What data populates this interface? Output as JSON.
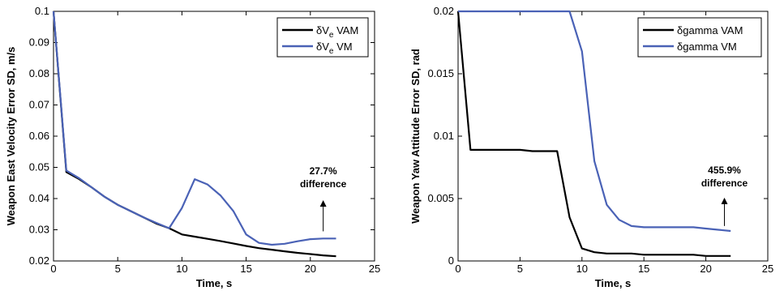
{
  "chart_data": [
    {
      "type": "line",
      "xlabel": "Time, s",
      "ylabel": "Weapon East Velocity Error SD, m/s",
      "xlim": [
        0,
        25
      ],
      "ylim": [
        0.02,
        0.1
      ],
      "xticks": [
        "0",
        "5",
        "10",
        "15",
        "20",
        "25"
      ],
      "yticks": [
        "0.02",
        "0.03",
        "0.04",
        "0.05",
        "0.06",
        "0.07",
        "0.08",
        "0.09",
        "0.1"
      ],
      "grid": false,
      "legend_position": "top-right",
      "series": [
        {
          "name": "δVe VAM",
          "legend_main": "δV",
          "legend_sub": "e",
          "legend_suffix": " VAM",
          "color": "#000000",
          "x": [
            0,
            1,
            2,
            3,
            4,
            5,
            6,
            7,
            8,
            9,
            10,
            11,
            12,
            13,
            14,
            15,
            16,
            17,
            18,
            19,
            20,
            21,
            22
          ],
          "y": [
            0.1,
            0.0485,
            0.0462,
            0.0435,
            0.0405,
            0.038,
            0.036,
            0.034,
            0.032,
            0.0305,
            0.0285,
            0.0278,
            0.0271,
            0.0264,
            0.0256,
            0.0248,
            0.0241,
            0.0236,
            0.0231,
            0.0226,
            0.0222,
            0.0218,
            0.0215
          ]
        },
        {
          "name": "δVe VM",
          "legend_main": "δV",
          "legend_sub": "e",
          "legend_suffix": " VM",
          "color": "#4a62b6",
          "x": [
            0,
            1,
            2,
            3,
            4,
            5,
            6,
            7,
            8,
            9,
            10,
            11,
            12,
            13,
            14,
            15,
            16,
            17,
            18,
            19,
            20,
            21,
            22
          ],
          "y": [
            0.1,
            0.049,
            0.0465,
            0.0435,
            0.0405,
            0.038,
            0.036,
            0.034,
            0.0322,
            0.0305,
            0.037,
            0.0462,
            0.0445,
            0.041,
            0.036,
            0.0285,
            0.0258,
            0.0252,
            0.0255,
            0.0263,
            0.027,
            0.0272,
            0.0272
          ]
        }
      ],
      "annotations": [
        {
          "lines": [
            "27.7%",
            "difference"
          ],
          "arrow": {
            "x": 21,
            "y_from": 0.0295,
            "y_to": 0.04
          }
        }
      ]
    },
    {
      "type": "line",
      "xlabel": "Time, s",
      "ylabel": "Weapon Yaw Attitude Error SD, rad",
      "xlim": [
        0,
        25
      ],
      "ylim": [
        0,
        0.02
      ],
      "xticks": [
        "0",
        "5",
        "10",
        "15",
        "20",
        "25"
      ],
      "yticks": [
        "0",
        "0.005",
        "0.01",
        "0.015",
        "0.02"
      ],
      "grid": false,
      "legend_position": "top-right",
      "series": [
        {
          "name": "δgamma VAM",
          "legend_main": "δgamma",
          "legend_sub": "",
          "legend_suffix": " VAM",
          "color": "#000000",
          "x": [
            0,
            1,
            2,
            3,
            4,
            5,
            6,
            7,
            8,
            9,
            10,
            11,
            12,
            13,
            14,
            15,
            16,
            17,
            18,
            19,
            20,
            21,
            22
          ],
          "y": [
            0.02,
            0.0089,
            0.0089,
            0.0089,
            0.0089,
            0.0089,
            0.0088,
            0.0088,
            0.0088,
            0.0035,
            0.001,
            0.0007,
            0.0006,
            0.0006,
            0.0006,
            0.0005,
            0.0005,
            0.0005,
            0.0005,
            0.0005,
            0.0004,
            0.0004,
            0.0004
          ]
        },
        {
          "name": "δgamma VM",
          "legend_main": "δgamma",
          "legend_sub": "",
          "legend_suffix": " VM",
          "color": "#4a62b6",
          "x": [
            0,
            1,
            2,
            3,
            4,
            5,
            6,
            7,
            8,
            9,
            10,
            11,
            12,
            13,
            14,
            15,
            16,
            17,
            18,
            19,
            20,
            21,
            22
          ],
          "y": [
            0.02,
            0.02,
            0.02,
            0.02,
            0.02,
            0.02,
            0.02,
            0.02,
            0.02,
            0.02,
            0.0168,
            0.008,
            0.0045,
            0.0033,
            0.0028,
            0.0027,
            0.0027,
            0.0027,
            0.0027,
            0.0027,
            0.0026,
            0.0025,
            0.0024
          ]
        }
      ],
      "annotations": [
        {
          "lines": [
            "455.9%",
            "difference"
          ],
          "arrow": {
            "x": 21.5,
            "y_from": 0.0028,
            "y_to": 0.0052
          }
        }
      ]
    }
  ]
}
